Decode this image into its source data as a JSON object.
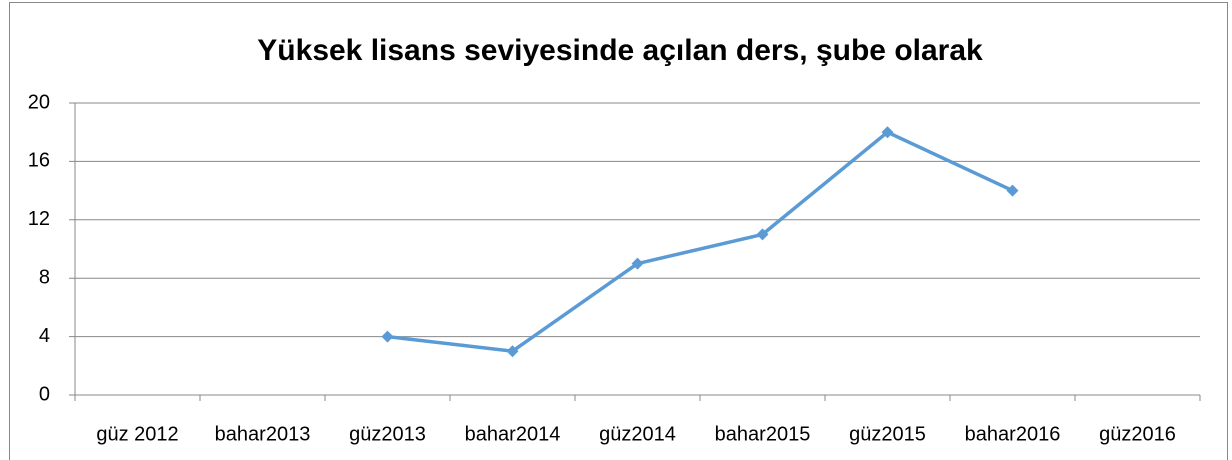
{
  "chart_data": {
    "type": "line",
    "title": "Yüksek lisans seviyesinde açılan ders, şube olarak",
    "categories": [
      "güz 2012",
      "bahar2013",
      "güz2013",
      "bahar2014",
      "güz2014",
      "bahar2015",
      "güz2015",
      "bahar2016",
      "güz2016"
    ],
    "series": [
      {
        "name": "Yüksek lisans",
        "color": "#5b9bd5",
        "values": [
          null,
          null,
          4,
          3,
          9,
          11,
          18,
          14,
          null
        ]
      }
    ],
    "ylim": [
      0,
      20
    ],
    "yticks": [
      0,
      4,
      8,
      12,
      16,
      20
    ],
    "grid": true,
    "legend": false
  }
}
